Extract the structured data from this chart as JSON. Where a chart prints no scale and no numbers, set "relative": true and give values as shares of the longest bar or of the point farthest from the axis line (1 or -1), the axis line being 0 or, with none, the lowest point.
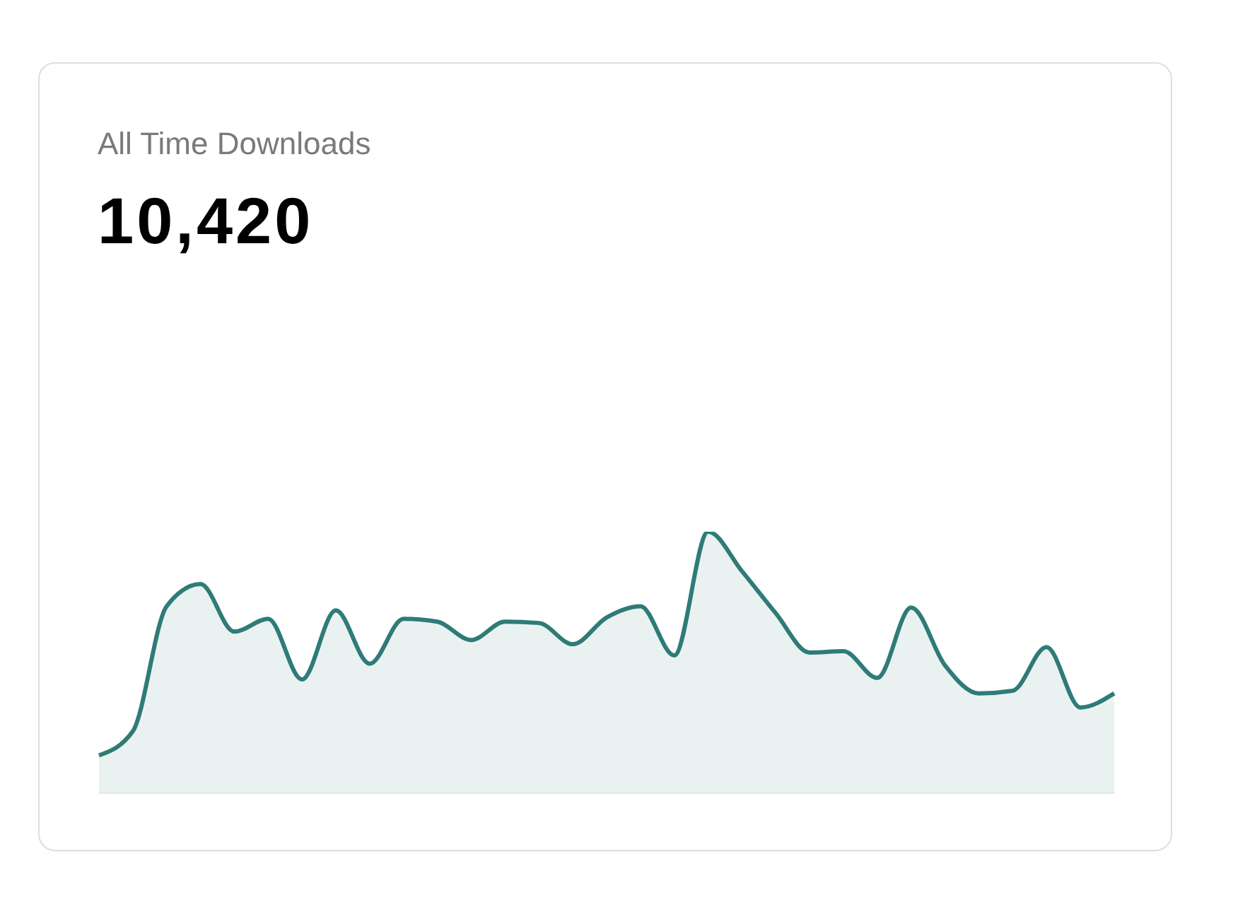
{
  "chart_data": {
    "type": "area",
    "title": "All Time Downloads",
    "subtitle": "10,420",
    "relative": true,
    "color": "#2f7b78",
    "categories": [
      null,
      null,
      null,
      null,
      null,
      null,
      null,
      null,
      null,
      null,
      null,
      null,
      null,
      null,
      null,
      null,
      null,
      null,
      null,
      null,
      null,
      null,
      null,
      null,
      null,
      null,
      null,
      null,
      null,
      null,
      null
    ],
    "values": [
      0.145,
      0.237,
      0.715,
      0.8,
      0.618,
      0.667,
      0.435,
      0.699,
      0.495,
      0.667,
      0.656,
      0.586,
      0.656,
      0.651,
      0.57,
      0.672,
      0.715,
      0.527,
      1,
      0.849,
      0.688,
      0.538,
      0.543,
      0.441,
      0.71,
      0.489,
      0.382,
      0.392,
      0.559,
      0.328,
      0.382
    ]
  }
}
